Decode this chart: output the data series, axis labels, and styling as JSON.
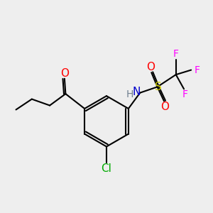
{
  "bg_color": "#eeeeee",
  "bond_color": "#000000",
  "bond_width": 1.5,
  "atom_colors": {
    "O": "#ff0000",
    "N": "#0000cc",
    "H": "#708090",
    "S": "#cccc00",
    "F": "#ff00ff",
    "Cl": "#00aa00",
    "C": "#000000"
  },
  "font_size": 10
}
